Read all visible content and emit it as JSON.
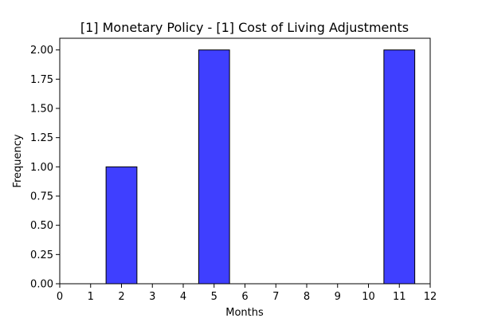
{
  "chart_data": {
    "type": "bar",
    "title": "[1] Monetary Policy - [1] Cost of Living Adjustments",
    "xlabel": "Months",
    "ylabel": "Frequency",
    "xlim": [
      0,
      12
    ],
    "ylim": [
      0,
      2.1
    ],
    "x_ticks": [
      "0",
      "1",
      "2",
      "3",
      "4",
      "5",
      "6",
      "7",
      "8",
      "9",
      "10",
      "11",
      "12"
    ],
    "y_ticks": [
      "0.00",
      "0.25",
      "0.50",
      "0.75",
      "1.00",
      "1.25",
      "1.50",
      "1.75",
      "2.00"
    ],
    "bars": [
      {
        "x": 2,
        "value": 1
      },
      {
        "x": 5,
        "value": 2
      },
      {
        "x": 11,
        "value": 2
      }
    ],
    "bar_width": 1,
    "bar_color": "#3f3fff",
    "bar_edge_color": "#000000",
    "grid": false,
    "legend": "none"
  }
}
